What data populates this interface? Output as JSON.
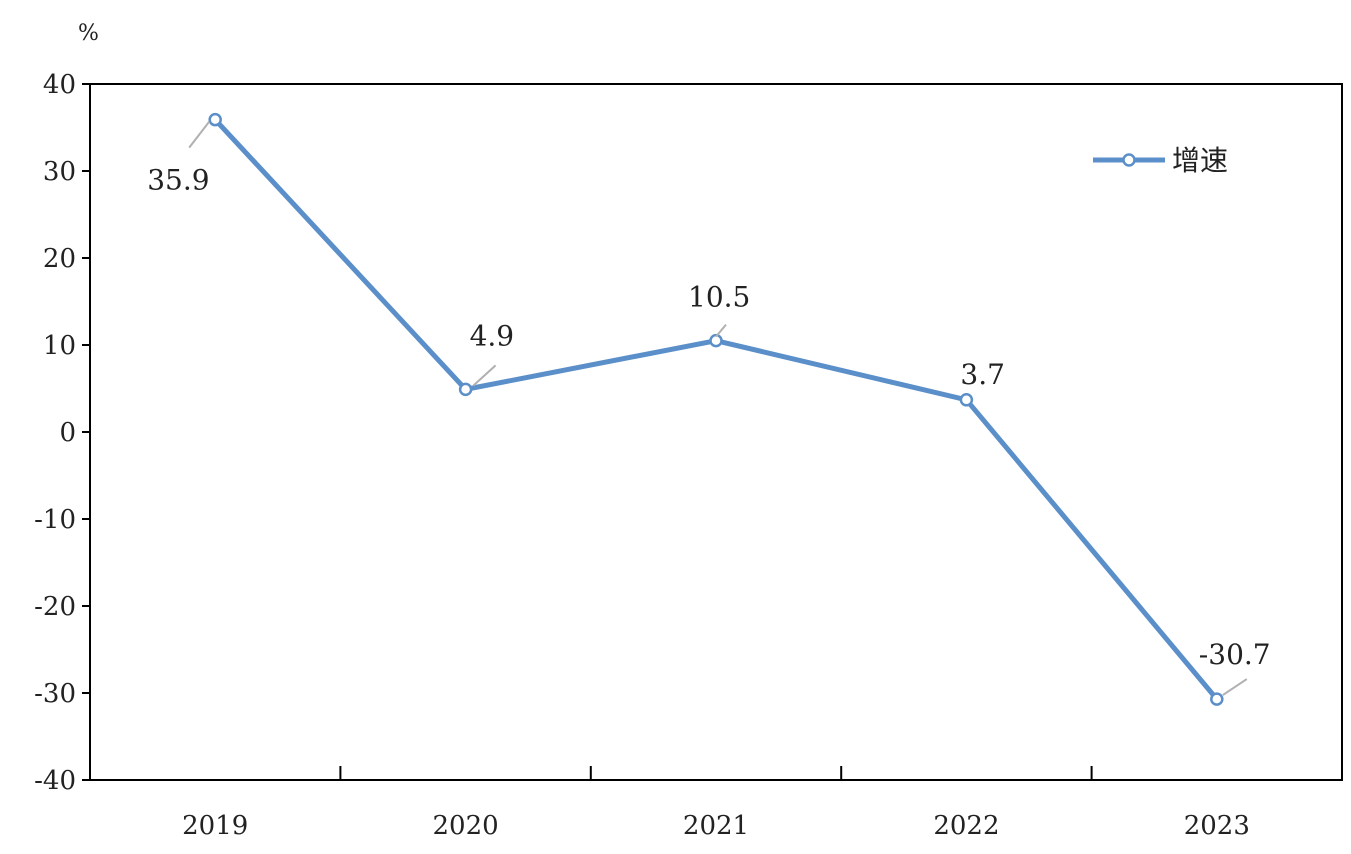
{
  "chart_data": {
    "type": "line",
    "title": "",
    "xlabel": "",
    "ylabel": "",
    "y_unit": "%",
    "categories": [
      "2019",
      "2020",
      "2021",
      "2022",
      "2023"
    ],
    "series": [
      {
        "name": "增速",
        "values": [
          35.9,
          4.9,
          10.5,
          3.7,
          -30.7
        ]
      }
    ],
    "data_labels": [
      "35.9",
      "4.9",
      "10.5",
      "3.7",
      "-30.7"
    ],
    "y_ticks": [
      "40",
      "30",
      "20",
      "10",
      "0",
      "-10",
      "-20",
      "-30",
      "-40"
    ],
    "ylim": [
      -40,
      40
    ],
    "grid": false,
    "legend": "top-right",
    "colors": {
      "line": "#5b8fc9",
      "marker_fill": "#ffffff",
      "axis": "#000000"
    }
  }
}
